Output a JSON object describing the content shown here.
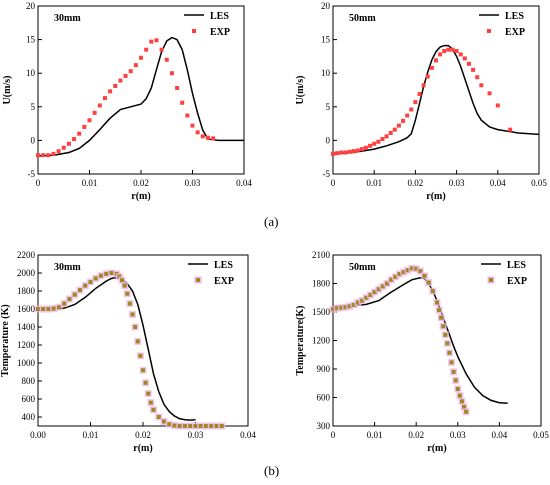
{
  "figure": {
    "captions": [
      "(a)",
      "(b)"
    ],
    "colors": {
      "les": "#000000",
      "exp_velocity": "#ff4040",
      "exp_temperature": "#9a8a22",
      "exp_temperature_halo": "#f2b6e6"
    }
  },
  "chart_data": [
    {
      "type": "line",
      "title": "30mm",
      "xlabel": "r(m)",
      "ylabel": "U(m/s)",
      "xlim": [
        0,
        0.04
      ],
      "ylim": [
        -5,
        20
      ],
      "xticks": [
        "0",
        "0.01",
        "0.02",
        "0.03",
        "0.04"
      ],
      "yticks": [
        "-5",
        "0",
        "5",
        "10",
        "15",
        "20"
      ],
      "legend": "top-right",
      "grid": false,
      "series": [
        {
          "name": "LES",
          "style": "line",
          "x": [
            0,
            0.003,
            0.006,
            0.008,
            0.01,
            0.012,
            0.014,
            0.016,
            0.018,
            0.02,
            0.021,
            0.022,
            0.023,
            0.024,
            0.025,
            0.026,
            0.027,
            0.028,
            0.029,
            0.03,
            0.031,
            0.032,
            0.033,
            0.035,
            0.04
          ],
          "y": [
            -2.3,
            -2.2,
            -1.8,
            -1.2,
            0,
            1.6,
            3.3,
            4.6,
            5.0,
            5.4,
            6.2,
            7.8,
            10.5,
            13.2,
            14.8,
            15.3,
            15.0,
            13.5,
            10.5,
            7.0,
            4.0,
            1.5,
            0.2,
            0.0,
            0.0
          ]
        },
        {
          "name": "EXP",
          "style": "markers",
          "x": [
            0,
            0.001,
            0.002,
            0.003,
            0.004,
            0.005,
            0.006,
            0.007,
            0.008,
            0.009,
            0.01,
            0.011,
            0.012,
            0.013,
            0.014,
            0.015,
            0.016,
            0.017,
            0.018,
            0.019,
            0.02,
            0.021,
            0.022,
            0.023,
            0.024,
            0.025,
            0.026,
            0.027,
            0.028,
            0.029,
            0.03,
            0.031,
            0.032,
            0.033,
            0.034
          ],
          "y": [
            -2.2,
            -2.2,
            -2.2,
            -2.0,
            -1.6,
            -1.1,
            -0.5,
            0.2,
            1.0,
            2.0,
            3.0,
            4.1,
            5.2,
            6.3,
            7.3,
            8.1,
            8.9,
            9.6,
            10.3,
            11.2,
            12.3,
            13.5,
            14.7,
            14.9,
            13.5,
            12.0,
            10.0,
            7.8,
            5.6,
            3.7,
            2.2,
            1.2,
            0.6,
            0.4,
            0.3
          ]
        }
      ]
    },
    {
      "type": "line",
      "title": "50mm",
      "xlabel": "r(m)",
      "ylabel": "U(m/s)",
      "xlim": [
        0,
        0.05
      ],
      "ylim": [
        -5,
        20
      ],
      "xticks": [
        "0",
        "0.01",
        "0.02",
        "0.03",
        "0.04",
        "0.05"
      ],
      "yticks": [
        "-5",
        "0",
        "5",
        "10",
        "15",
        "20"
      ],
      "legend": "top-right",
      "grid": false,
      "series": [
        {
          "name": "LES",
          "style": "line",
          "x": [
            0,
            0.005,
            0.01,
            0.013,
            0.016,
            0.018,
            0.019,
            0.02,
            0.021,
            0.022,
            0.023,
            0.024,
            0.025,
            0.026,
            0.027,
            0.028,
            0.029,
            0.03,
            0.031,
            0.032,
            0.033,
            0.034,
            0.035,
            0.036,
            0.038,
            0.04,
            0.045,
            0.05
          ],
          "y": [
            -2.0,
            -1.8,
            -1.3,
            -0.8,
            -0.2,
            0.4,
            1.0,
            3.0,
            5.5,
            8.0,
            10.2,
            12.0,
            13.2,
            13.9,
            14.1,
            14.1,
            13.6,
            12.5,
            11.0,
            9.2,
            7.3,
            5.5,
            4.0,
            3.0,
            2.0,
            1.6,
            1.1,
            0.9
          ]
        },
        {
          "name": "EXP",
          "style": "markers",
          "x": [
            0,
            0.001,
            0.002,
            0.003,
            0.004,
            0.005,
            0.006,
            0.007,
            0.008,
            0.009,
            0.01,
            0.011,
            0.012,
            0.013,
            0.014,
            0.015,
            0.016,
            0.017,
            0.018,
            0.019,
            0.02,
            0.021,
            0.022,
            0.023,
            0.024,
            0.025,
            0.026,
            0.027,
            0.028,
            0.029,
            0.03,
            0.031,
            0.032,
            0.033,
            0.034,
            0.035,
            0.036,
            0.038,
            0.04,
            0.043
          ],
          "y": [
            -2.0,
            -1.9,
            -1.8,
            -1.8,
            -1.7,
            -1.6,
            -1.5,
            -1.3,
            -1.1,
            -0.8,
            -0.5,
            -0.2,
            0.2,
            0.6,
            1.1,
            1.6,
            2.2,
            2.9,
            3.7,
            4.6,
            5.7,
            6.9,
            8.2,
            9.5,
            10.8,
            11.9,
            12.8,
            13.3,
            13.5,
            13.5,
            13.3,
            12.8,
            12.2,
            11.4,
            10.5,
            9.4,
            8.2,
            7.0,
            5.2,
            1.6
          ]
        }
      ]
    },
    {
      "type": "line",
      "title": "30mm",
      "xlabel": "r(m)",
      "ylabel": "Temperature (K)",
      "xlim": [
        0,
        0.04
      ],
      "ylim": [
        300,
        2200
      ],
      "xticks": [
        "0.00",
        "0.01",
        "0.02",
        "0.03",
        "0.04"
      ],
      "yticks": [
        "400",
        "600",
        "800",
        "1000",
        "1200",
        "1400",
        "1600",
        "1800",
        "2000",
        "2200"
      ],
      "legend": "top-right",
      "grid": false,
      "series": [
        {
          "name": "LES",
          "style": "line",
          "x": [
            0,
            0.003,
            0.005,
            0.007,
            0.009,
            0.011,
            0.013,
            0.014,
            0.015,
            0.016,
            0.017,
            0.018,
            0.019,
            0.02,
            0.021,
            0.022,
            0.023,
            0.024,
            0.025,
            0.026,
            0.027,
            0.028,
            0.029,
            0.03
          ],
          "y": [
            1600,
            1600,
            1610,
            1650,
            1730,
            1830,
            1910,
            1940,
            1950,
            1930,
            1880,
            1800,
            1650,
            1420,
            1150,
            880,
            680,
            540,
            460,
            410,
            380,
            370,
            365,
            370
          ]
        },
        {
          "name": "EXP",
          "style": "markers",
          "x": [
            0,
            0.001,
            0.002,
            0.003,
            0.004,
            0.005,
            0.006,
            0.007,
            0.008,
            0.009,
            0.01,
            0.011,
            0.012,
            0.013,
            0.014,
            0.015,
            0.0155,
            0.016,
            0.0165,
            0.017,
            0.0175,
            0.018,
            0.0185,
            0.019,
            0.0195,
            0.02,
            0.0205,
            0.021,
            0.0215,
            0.022,
            0.023,
            0.024,
            0.025,
            0.026,
            0.027,
            0.028,
            0.029,
            0.03,
            0.031,
            0.032,
            0.033,
            0.034,
            0.035
          ],
          "y": [
            1600,
            1600,
            1600,
            1605,
            1620,
            1660,
            1710,
            1760,
            1810,
            1860,
            1900,
            1940,
            1970,
            1990,
            2000,
            1990,
            1960,
            1920,
            1860,
            1770,
            1660,
            1540,
            1400,
            1240,
            1080,
            920,
            780,
            660,
            560,
            480,
            400,
            350,
            320,
            305,
            300,
            300,
            300,
            300,
            300,
            300,
            300,
            300,
            300
          ]
        }
      ]
    },
    {
      "type": "line",
      "title": "50mm",
      "xlabel": "r(m)",
      "ylabel": "Temperature(K)",
      "xlim": [
        0,
        0.05
      ],
      "ylim": [
        300,
        2100
      ],
      "xticks": [
        "0",
        "0.01",
        "0.02",
        "0.03",
        "0.04",
        "0.05"
      ],
      "yticks": [
        "300",
        "600",
        "900",
        "1200",
        "1500",
        "1800",
        "2100"
      ],
      "legend": "top-right",
      "grid": false,
      "series": [
        {
          "name": "LES",
          "style": "line",
          "x": [
            0,
            0.004,
            0.008,
            0.011,
            0.014,
            0.017,
            0.019,
            0.021,
            0.022,
            0.023,
            0.024,
            0.025,
            0.026,
            0.027,
            0.028,
            0.029,
            0.03,
            0.032,
            0.034,
            0.036,
            0.038,
            0.04,
            0.042
          ],
          "y": [
            1560,
            1560,
            1580,
            1620,
            1710,
            1790,
            1840,
            1860,
            1850,
            1800,
            1720,
            1620,
            1500,
            1380,
            1260,
            1140,
            1030,
            850,
            710,
            620,
            570,
            545,
            540
          ]
        },
        {
          "name": "EXP",
          "style": "markers",
          "x": [
            0,
            0.001,
            0.002,
            0.003,
            0.004,
            0.005,
            0.006,
            0.007,
            0.008,
            0.009,
            0.01,
            0.011,
            0.012,
            0.013,
            0.014,
            0.015,
            0.016,
            0.017,
            0.018,
            0.019,
            0.02,
            0.021,
            0.022,
            0.023,
            0.024,
            0.025,
            0.0255,
            0.026,
            0.0265,
            0.027,
            0.0275,
            0.028,
            0.0285,
            0.029,
            0.0295,
            0.03,
            0.0305,
            0.031,
            0.0315,
            0.032
          ],
          "y": [
            1530,
            1540,
            1545,
            1550,
            1560,
            1575,
            1600,
            1620,
            1650,
            1680,
            1710,
            1740,
            1770,
            1800,
            1840,
            1870,
            1900,
            1920,
            1940,
            1960,
            1955,
            1930,
            1880,
            1810,
            1720,
            1600,
            1520,
            1440,
            1350,
            1260,
            1170,
            1070,
            970,
            870,
            780,
            690,
            620,
            560,
            500,
            450
          ]
        }
      ]
    }
  ]
}
